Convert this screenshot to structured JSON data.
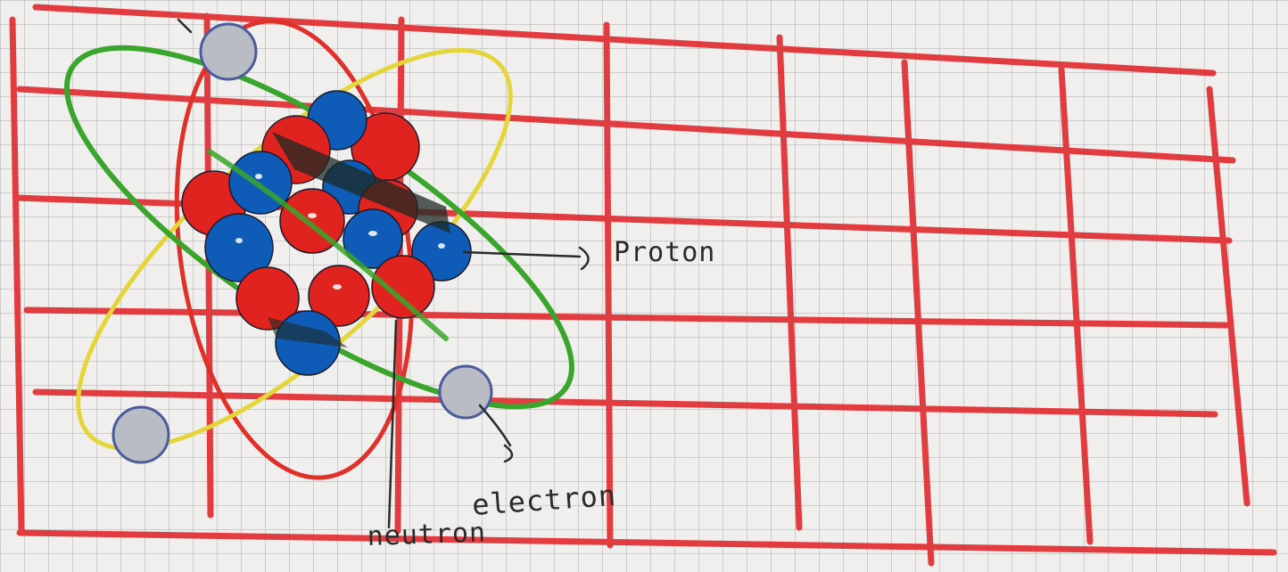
{
  "labels": {
    "proton": "Proton",
    "electron": "electron",
    "neutron": "neutron"
  },
  "colors": {
    "paper": "#f1efed",
    "grid_line": "#8c8c96",
    "table_red": "#e02a2e",
    "proton_red": "#e0231f",
    "neutron_blue": "#0f5cb8",
    "orbit_red": "#e0302a",
    "orbit_green": "#3aa52c",
    "orbit_yellow": "#e4d63a",
    "electron_gray": "#b9bcc4",
    "ink": "#2a2a2a"
  }
}
